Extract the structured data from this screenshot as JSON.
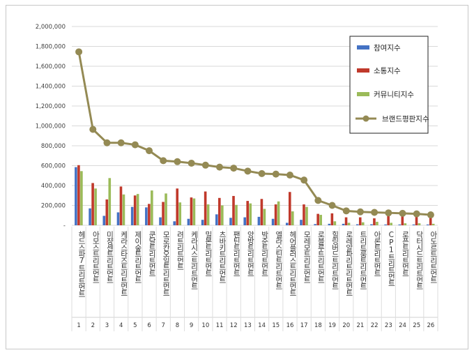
{
  "chart_data": {
    "type": "bar",
    "title": "",
    "xlabel": "",
    "ylabel": "",
    "ylim": [
      0,
      2000000
    ],
    "yticks": [
      "-",
      "200,000",
      "400,000",
      "600,000",
      "800,000",
      "1,000,000",
      "1,200,000",
      "1,400,000",
      "1,600,000",
      "1,800,000",
      "2,000,000"
    ],
    "ytick_values": [
      0,
      200000,
      400000,
      600000,
      800000,
      1000000,
      1200000,
      1400000,
      1600000,
      1800000,
      2000000
    ],
    "indices": [
      "1",
      "2",
      "3",
      "4",
      "5",
      "6",
      "7",
      "8",
      "9",
      "10",
      "11",
      "12",
      "13",
      "14",
      "15",
      "16",
      "17",
      "18",
      "19",
      "20",
      "21",
      "22",
      "23",
      "24",
      "25",
      "26"
    ],
    "categories": [
      "헤드스파7트리트먼트",
      "아모스트리트먼트",
      "미쟝센트리트먼트",
      "케라스타즈트리트먼트",
      "제이숲트리트먼트",
      "쿤달트리트먼트",
      "모로칸오일트리트먼트",
      "려트리트먼트",
      "케라시스트리트먼트",
      "밀본트리트먼트",
      "츠바키트리트먼트",
      "팬틴트리트먼트",
      "앙방트리트먼트",
      "박준트리트먼트",
      "엘라스틴트리트먼트",
      "헤어플러스트리트먼트",
      "모레모트리트먼트",
      "로블루트리트먼트",
      "힐링버드트리트먼트",
      "로레알파리트리트먼트",
      "트리트룸트리트먼트",
      "아론트리트먼트",
      "CP1트리트먼트",
      "로픈트리트먼트",
      "닥터시드트리트먼트",
      "아도르트리트먼트"
    ],
    "series": [
      {
        "name": "참여지수",
        "color": "#4472c4",
        "values": [
          585000,
          170000,
          95000,
          130000,
          185000,
          180000,
          80000,
          40000,
          65000,
          55000,
          110000,
          75000,
          80000,
          85000,
          65000,
          25000,
          55000,
          12000,
          15000,
          15000,
          10000,
          10000,
          8000,
          8000,
          8000,
          8000
        ]
      },
      {
        "name": "소통지수",
        "color": "#c0392b",
        "values": [
          605000,
          425000,
          260000,
          390000,
          300000,
          215000,
          235000,
          370000,
          280000,
          340000,
          275000,
          295000,
          245000,
          265000,
          210000,
          335000,
          210000,
          115000,
          120000,
          80000,
          80000,
          70000,
          95000,
          90000,
          85000,
          75000
        ]
      },
      {
        "name": "커뮤니티지수",
        "color": "#9bbb59",
        "values": [
          545000,
          370000,
          475000,
          310000,
          315000,
          350000,
          320000,
          230000,
          270000,
          210000,
          200000,
          205000,
          220000,
          165000,
          240000,
          140000,
          185000,
          105000,
          40000,
          25000,
          30000,
          35000,
          25000,
          20000,
          20000,
          15000
        ]
      },
      {
        "name": "브랜드평판지수",
        "color": "#948a54",
        "type": "line",
        "values": [
          1745000,
          965000,
          830000,
          830000,
          810000,
          750000,
          650000,
          640000,
          625000,
          605000,
          585000,
          575000,
          545000,
          520000,
          515000,
          505000,
          455000,
          250000,
          200000,
          145000,
          135000,
          130000,
          125000,
          120000,
          115000,
          105000
        ]
      }
    ],
    "grid": true,
    "legend_position": "top-right"
  }
}
